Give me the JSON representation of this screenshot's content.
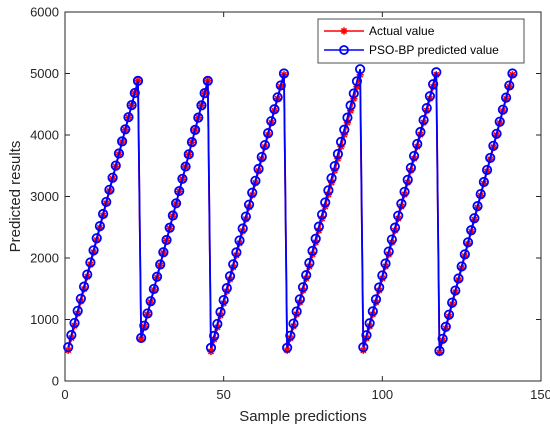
{
  "chart_data": {
    "type": "line",
    "xlabel": "Sample predictions",
    "ylabel": "Predicted results",
    "xlim": [
      0,
      150
    ],
    "ylim": [
      0,
      6000
    ],
    "xticks": [
      0,
      50,
      100,
      150
    ],
    "yticks": [
      0,
      1000,
      2000,
      3000,
      4000,
      5000,
      6000
    ],
    "grid": false,
    "legend_position": "top-right",
    "segments": [
      {
        "x_start": 1,
        "x_end": 23,
        "actual_start": 500,
        "actual_end": 4880,
        "pred_start": 550,
        "pred_end": 4880
      },
      {
        "x_start": 24,
        "x_end": 45,
        "actual_start": 680,
        "actual_end": 4880,
        "pred_start": 700,
        "pred_end": 4880
      },
      {
        "x_start": 46,
        "x_end": 69,
        "actual_start": 480,
        "actual_end": 4980,
        "pred_start": 540,
        "pred_end": 5000
      },
      {
        "x_start": 70,
        "x_end": 93,
        "actual_start": 500,
        "actual_end": 4980,
        "pred_start": 540,
        "pred_end": 5070
      },
      {
        "x_start": 94,
        "x_end": 117,
        "actual_start": 500,
        "actual_end": 4980,
        "pred_start": 550,
        "pred_end": 5020
      },
      {
        "x_start": 118,
        "x_end": 141,
        "actual_start": 460,
        "actual_end": 4980,
        "pred_start": 490,
        "pred_end": 5000
      }
    ],
    "series": [
      {
        "name": "Actual value",
        "color": "#ff0000",
        "marker": "asterisk"
      },
      {
        "name": "PSO-BP predicted value",
        "color": "#0000ff",
        "marker": "circle"
      }
    ]
  }
}
